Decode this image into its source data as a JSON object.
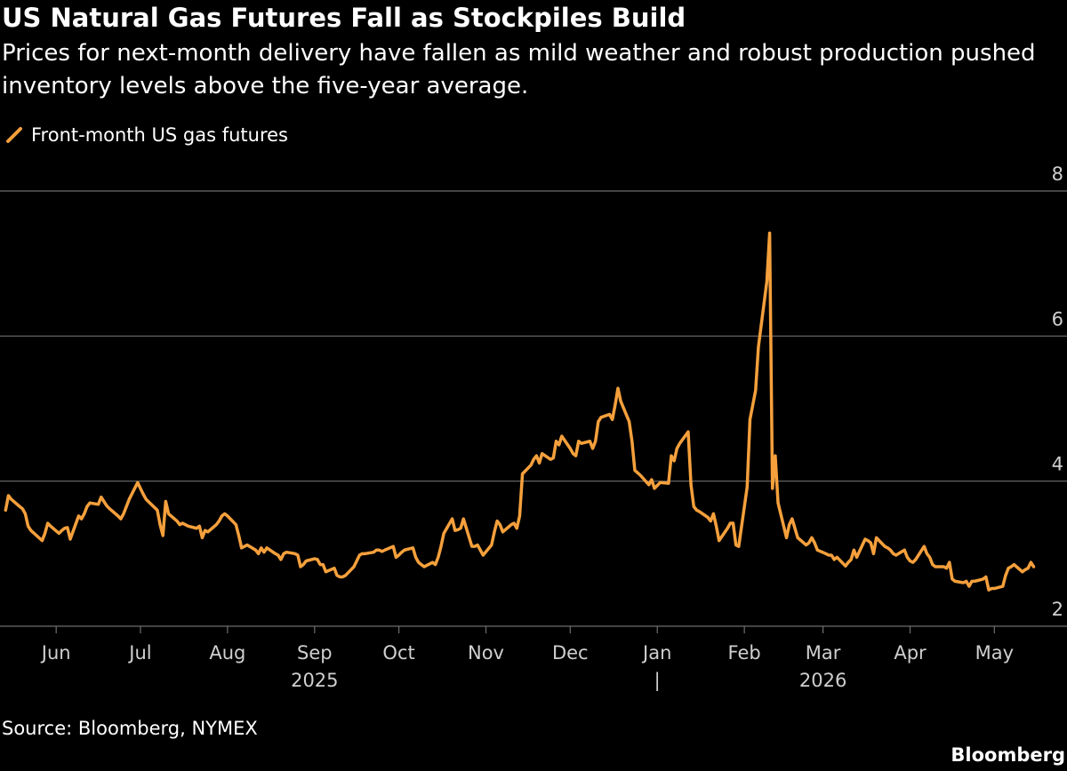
{
  "header": {
    "title": "US Natural Gas Futures Fall as Stockpiles Build",
    "subtitle": "Prices for next-month delivery have fallen as mild weather and robust production pushed inventory levels above the five-year average."
  },
  "footer": {
    "source": "Source: Bloomberg, NYMEX",
    "brand": "Bloomberg"
  },
  "colors": {
    "background": "#000000",
    "series": "#f5a03c",
    "grid": "#6e6e6e",
    "text": "#ffffff",
    "axis_text": "#cfcfcf"
  },
  "chart_data": {
    "type": "line",
    "title": "US Natural Gas Futures Fall as Stockpiles Build",
    "xlabel": "",
    "ylabel": "",
    "ylim": [
      2,
      8
    ],
    "xlim": [
      "2025-05-12",
      "2026-05-18"
    ],
    "y_ticks": [
      "2",
      "4",
      "6",
      "8"
    ],
    "grid": true,
    "legend_position": "top-left",
    "x_ticks": [
      {
        "date": "2025-06-01",
        "label": "Jun"
      },
      {
        "date": "2025-07-01",
        "label": "Jul"
      },
      {
        "date": "2025-08-01",
        "label": "Aug"
      },
      {
        "date": "2025-09-01",
        "label": "Sep"
      },
      {
        "date": "2025-10-01",
        "label": "Oct"
      },
      {
        "date": "2025-11-01",
        "label": "Nov"
      },
      {
        "date": "2025-12-01",
        "label": "Dec"
      },
      {
        "date": "2026-01-01",
        "label": "Jan"
      },
      {
        "date": "2026-02-01",
        "label": "Feb"
      },
      {
        "date": "2026-03-01",
        "label": "Mar"
      },
      {
        "date": "2026-04-01",
        "label": "Apr"
      },
      {
        "date": "2026-05-01",
        "label": "May"
      }
    ],
    "year_labels": [
      {
        "date": "2025-09-01",
        "label": "2025"
      },
      {
        "date": "2026-03-01",
        "label": "2026"
      }
    ],
    "year_divider": {
      "date": "2026-01-01",
      "label": "|"
    },
    "series": [
      {
        "name": "Front-month US gas futures",
        "points": [
          [
            "2025-05-14",
            3.6
          ],
          [
            "2025-05-15",
            3.8
          ],
          [
            "2025-05-16",
            3.75
          ],
          [
            "2025-05-19",
            3.65
          ],
          [
            "2025-05-20",
            3.62
          ],
          [
            "2025-05-21",
            3.55
          ],
          [
            "2025-05-22",
            3.38
          ],
          [
            "2025-05-23",
            3.32
          ],
          [
            "2025-05-27",
            3.18
          ],
          [
            "2025-05-28",
            3.28
          ],
          [
            "2025-05-29",
            3.42
          ],
          [
            "2025-05-30",
            3.38
          ],
          [
            "2025-06-02",
            3.28
          ],
          [
            "2025-06-03",
            3.32
          ],
          [
            "2025-06-04",
            3.35
          ],
          [
            "2025-06-05",
            3.36
          ],
          [
            "2025-06-06",
            3.2
          ],
          [
            "2025-06-09",
            3.52
          ],
          [
            "2025-06-10",
            3.48
          ],
          [
            "2025-06-11",
            3.55
          ],
          [
            "2025-06-12",
            3.65
          ],
          [
            "2025-06-13",
            3.7
          ],
          [
            "2025-06-16",
            3.68
          ],
          [
            "2025-06-17",
            3.78
          ],
          [
            "2025-06-18",
            3.72
          ],
          [
            "2025-06-19",
            3.66
          ],
          [
            "2025-06-20",
            3.62
          ],
          [
            "2025-06-23",
            3.52
          ],
          [
            "2025-06-24",
            3.48
          ],
          [
            "2025-06-25",
            3.55
          ],
          [
            "2025-06-26",
            3.65
          ],
          [
            "2025-06-27",
            3.75
          ],
          [
            "2025-06-30",
            3.98
          ],
          [
            "2025-07-01",
            3.9
          ],
          [
            "2025-07-02",
            3.82
          ],
          [
            "2025-07-03",
            3.75
          ],
          [
            "2025-07-07",
            3.6
          ],
          [
            "2025-07-08",
            3.4
          ],
          [
            "2025-07-09",
            3.25
          ],
          [
            "2025-07-10",
            3.72
          ],
          [
            "2025-07-11",
            3.55
          ],
          [
            "2025-07-14",
            3.45
          ],
          [
            "2025-07-15",
            3.4
          ],
          [
            "2025-07-16",
            3.42
          ],
          [
            "2025-07-17",
            3.4
          ],
          [
            "2025-07-18",
            3.38
          ],
          [
            "2025-07-21",
            3.35
          ],
          [
            "2025-07-22",
            3.38
          ],
          [
            "2025-07-23",
            3.22
          ],
          [
            "2025-07-24",
            3.32
          ],
          [
            "2025-07-25",
            3.3
          ],
          [
            "2025-07-28",
            3.4
          ],
          [
            "2025-07-29",
            3.45
          ],
          [
            "2025-07-30",
            3.52
          ],
          [
            "2025-07-31",
            3.55
          ],
          [
            "2025-08-01",
            3.52
          ],
          [
            "2025-08-04",
            3.4
          ],
          [
            "2025-08-05",
            3.25
          ],
          [
            "2025-08-06",
            3.08
          ],
          [
            "2025-08-07",
            3.1
          ],
          [
            "2025-08-08",
            3.12
          ],
          [
            "2025-08-11",
            3.05
          ],
          [
            "2025-08-12",
            3.0
          ],
          [
            "2025-08-13",
            3.08
          ],
          [
            "2025-08-14",
            3.02
          ],
          [
            "2025-08-15",
            3.08
          ],
          [
            "2025-08-18",
            3.0
          ],
          [
            "2025-08-19",
            2.98
          ],
          [
            "2025-08-20",
            2.92
          ],
          [
            "2025-08-21",
            3.0
          ],
          [
            "2025-08-22",
            3.02
          ],
          [
            "2025-08-25",
            3.0
          ],
          [
            "2025-08-26",
            2.98
          ],
          [
            "2025-08-27",
            2.82
          ],
          [
            "2025-08-28",
            2.85
          ],
          [
            "2025-08-29",
            2.9
          ],
          [
            "2025-09-01",
            2.93
          ],
          [
            "2025-09-02",
            2.92
          ],
          [
            "2025-09-03",
            2.85
          ],
          [
            "2025-09-04",
            2.85
          ],
          [
            "2025-09-05",
            2.75
          ],
          [
            "2025-09-08",
            2.8
          ],
          [
            "2025-09-09",
            2.7
          ],
          [
            "2025-09-10",
            2.68
          ],
          [
            "2025-09-11",
            2.68
          ],
          [
            "2025-09-12",
            2.7
          ],
          [
            "2025-09-15",
            2.82
          ],
          [
            "2025-09-16",
            2.9
          ],
          [
            "2025-09-17",
            2.98
          ],
          [
            "2025-09-18",
            3.0
          ],
          [
            "2025-09-19",
            3.0
          ],
          [
            "2025-09-22",
            3.02
          ],
          [
            "2025-09-23",
            3.05
          ],
          [
            "2025-09-24",
            3.05
          ],
          [
            "2025-09-25",
            3.03
          ],
          [
            "2025-09-26",
            3.05
          ],
          [
            "2025-09-29",
            3.1
          ],
          [
            "2025-09-30",
            2.95
          ],
          [
            "2025-10-01",
            2.98
          ],
          [
            "2025-10-02",
            3.02
          ],
          [
            "2025-10-03",
            3.05
          ],
          [
            "2025-10-06",
            3.08
          ],
          [
            "2025-10-07",
            2.95
          ],
          [
            "2025-10-08",
            2.88
          ],
          [
            "2025-10-09",
            2.85
          ],
          [
            "2025-10-10",
            2.82
          ],
          [
            "2025-10-13",
            2.88
          ],
          [
            "2025-10-14",
            2.85
          ],
          [
            "2025-10-15",
            2.95
          ],
          [
            "2025-10-16",
            3.1
          ],
          [
            "2025-10-17",
            3.28
          ],
          [
            "2025-10-20",
            3.48
          ],
          [
            "2025-10-21",
            3.32
          ],
          [
            "2025-10-22",
            3.33
          ],
          [
            "2025-10-23",
            3.35
          ],
          [
            "2025-10-24",
            3.48
          ],
          [
            "2025-10-27",
            3.1
          ],
          [
            "2025-10-28",
            3.1
          ],
          [
            "2025-10-29",
            3.12
          ],
          [
            "2025-10-30",
            3.05
          ],
          [
            "2025-10-31",
            2.98
          ],
          [
            "2025-11-03",
            3.12
          ],
          [
            "2025-11-04",
            3.3
          ],
          [
            "2025-11-05",
            3.45
          ],
          [
            "2025-11-06",
            3.4
          ],
          [
            "2025-11-07",
            3.3
          ],
          [
            "2025-11-10",
            3.4
          ],
          [
            "2025-11-11",
            3.42
          ],
          [
            "2025-11-12",
            3.35
          ],
          [
            "2025-11-13",
            3.52
          ],
          [
            "2025-11-14",
            4.1
          ],
          [
            "2025-11-17",
            4.22
          ],
          [
            "2025-11-18",
            4.3
          ],
          [
            "2025-11-19",
            4.35
          ],
          [
            "2025-11-20",
            4.25
          ],
          [
            "2025-11-21",
            4.38
          ],
          [
            "2025-11-24",
            4.3
          ],
          [
            "2025-11-25",
            4.32
          ],
          [
            "2025-11-26",
            4.55
          ],
          [
            "2025-11-27",
            4.5
          ],
          [
            "2025-11-28",
            4.62
          ],
          [
            "2025-12-01",
            4.45
          ],
          [
            "2025-12-02",
            4.38
          ],
          [
            "2025-12-03",
            4.35
          ],
          [
            "2025-12-04",
            4.55
          ],
          [
            "2025-12-05",
            4.52
          ],
          [
            "2025-12-08",
            4.55
          ],
          [
            "2025-12-09",
            4.45
          ],
          [
            "2025-12-10",
            4.55
          ],
          [
            "2025-12-11",
            4.82
          ],
          [
            "2025-12-12",
            4.88
          ],
          [
            "2025-12-15",
            4.92
          ],
          [
            "2025-12-16",
            4.85
          ],
          [
            "2025-12-17",
            5.05
          ],
          [
            "2025-12-18",
            5.28
          ],
          [
            "2025-12-19",
            5.1
          ],
          [
            "2025-12-22",
            4.82
          ],
          [
            "2025-12-23",
            4.55
          ],
          [
            "2025-12-24",
            4.15
          ],
          [
            "2025-12-26",
            4.08
          ],
          [
            "2025-12-29",
            3.95
          ],
          [
            "2025-12-30",
            4.02
          ],
          [
            "2025-12-31",
            3.9
          ],
          [
            "2026-01-02",
            3.98
          ],
          [
            "2026-01-05",
            3.97
          ],
          [
            "2026-01-06",
            4.35
          ],
          [
            "2026-01-07",
            4.28
          ],
          [
            "2026-01-08",
            4.45
          ],
          [
            "2026-01-09",
            4.52
          ],
          [
            "2026-01-12",
            4.68
          ],
          [
            "2026-01-13",
            3.95
          ],
          [
            "2026-01-14",
            3.65
          ],
          [
            "2026-01-15",
            3.6
          ],
          [
            "2026-01-16",
            3.58
          ],
          [
            "2026-01-19",
            3.5
          ],
          [
            "2026-01-20",
            3.45
          ],
          [
            "2026-01-21",
            3.55
          ],
          [
            "2026-01-22",
            3.38
          ],
          [
            "2026-01-23",
            3.18
          ],
          [
            "2026-01-26",
            3.35
          ],
          [
            "2026-01-27",
            3.42
          ],
          [
            "2026-01-28",
            3.42
          ],
          [
            "2026-01-29",
            3.12
          ],
          [
            "2026-01-30",
            3.1
          ],
          [
            "2026-02-02",
            3.92
          ],
          [
            "2026-02-03",
            4.85
          ],
          [
            "2026-02-04",
            5.05
          ],
          [
            "2026-02-05",
            5.25
          ],
          [
            "2026-02-06",
            5.85
          ],
          [
            "2026-02-09",
            6.75
          ],
          [
            "2026-02-10",
            7.42
          ],
          [
            "2026-02-11",
            3.9
          ],
          [
            "2026-02-12",
            4.35
          ],
          [
            "2026-02-13",
            3.7
          ],
          [
            "2026-02-16",
            3.22
          ],
          [
            "2026-02-17",
            3.4
          ],
          [
            "2026-02-18",
            3.48
          ],
          [
            "2026-02-19",
            3.35
          ],
          [
            "2026-02-20",
            3.22
          ],
          [
            "2026-02-23",
            3.12
          ],
          [
            "2026-02-24",
            3.15
          ],
          [
            "2026-02-25",
            3.22
          ],
          [
            "2026-02-26",
            3.15
          ],
          [
            "2026-02-27",
            3.05
          ],
          [
            "2026-03-02",
            3.0
          ],
          [
            "2026-03-03",
            2.98
          ],
          [
            "2026-03-04",
            2.98
          ],
          [
            "2026-03-05",
            2.92
          ],
          [
            "2026-03-06",
            2.95
          ],
          [
            "2026-03-09",
            2.83
          ],
          [
            "2026-03-10",
            2.88
          ],
          [
            "2026-03-11",
            2.92
          ],
          [
            "2026-03-12",
            3.05
          ],
          [
            "2026-03-13",
            2.95
          ],
          [
            "2026-03-16",
            3.2
          ],
          [
            "2026-03-17",
            3.18
          ],
          [
            "2026-03-18",
            3.15
          ],
          [
            "2026-03-19",
            3.0
          ],
          [
            "2026-03-20",
            3.22
          ],
          [
            "2026-03-23",
            3.1
          ],
          [
            "2026-03-24",
            3.08
          ],
          [
            "2026-03-25",
            3.05
          ],
          [
            "2026-03-26",
            3.0
          ],
          [
            "2026-03-27",
            2.98
          ],
          [
            "2026-03-30",
            3.05
          ],
          [
            "2026-03-31",
            2.95
          ],
          [
            "2026-04-01",
            2.9
          ],
          [
            "2026-04-02",
            2.88
          ],
          [
            "2026-04-03",
            2.92
          ],
          [
            "2026-04-06",
            3.1
          ],
          [
            "2026-04-07",
            3.0
          ],
          [
            "2026-04-08",
            2.95
          ],
          [
            "2026-04-09",
            2.85
          ],
          [
            "2026-04-10",
            2.82
          ],
          [
            "2026-04-13",
            2.82
          ],
          [
            "2026-04-14",
            2.8
          ],
          [
            "2026-04-15",
            2.88
          ],
          [
            "2026-04-16",
            2.65
          ],
          [
            "2026-04-17",
            2.62
          ],
          [
            "2026-04-20",
            2.6
          ],
          [
            "2026-04-21",
            2.62
          ],
          [
            "2026-04-22",
            2.55
          ],
          [
            "2026-04-23",
            2.62
          ],
          [
            "2026-04-24",
            2.62
          ],
          [
            "2026-04-27",
            2.65
          ],
          [
            "2026-04-28",
            2.68
          ],
          [
            "2026-04-29",
            2.5
          ],
          [
            "2026-04-30",
            2.52
          ],
          [
            "2026-05-01",
            2.52
          ],
          [
            "2026-05-04",
            2.55
          ],
          [
            "2026-05-05",
            2.7
          ],
          [
            "2026-05-06",
            2.8
          ],
          [
            "2026-05-07",
            2.82
          ],
          [
            "2026-05-08",
            2.85
          ],
          [
            "2026-05-11",
            2.75
          ],
          [
            "2026-05-12",
            2.78
          ],
          [
            "2026-05-13",
            2.8
          ],
          [
            "2026-05-14",
            2.88
          ],
          [
            "2026-05-15",
            2.82
          ]
        ]
      }
    ]
  }
}
